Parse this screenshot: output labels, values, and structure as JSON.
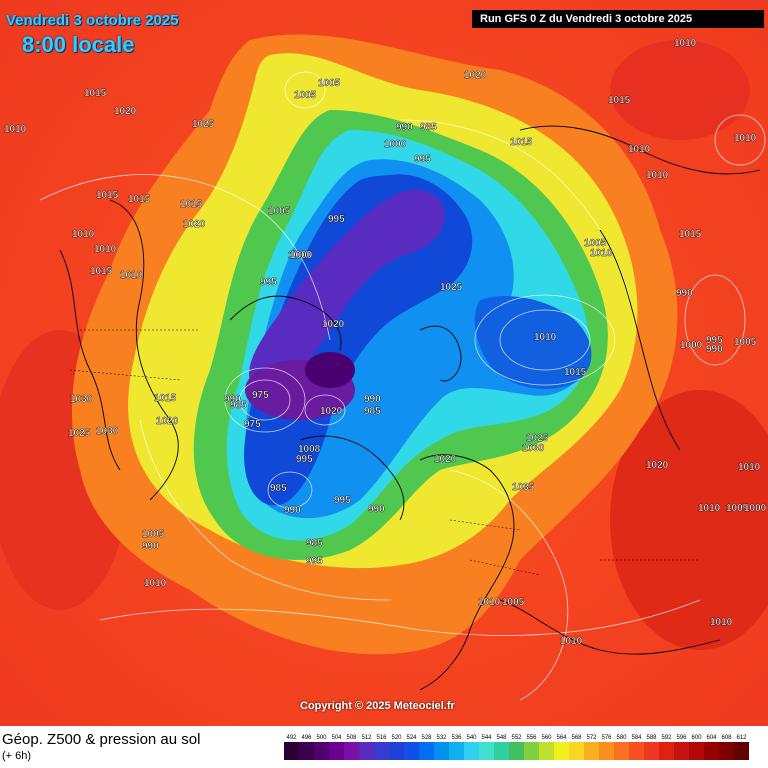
{
  "header": {
    "date_line": "Vendredi 3 octobre 2025",
    "time_line": "8:00 locale",
    "run_line": "Run GFS 0 Z du Vendredi 3 octobre 2025"
  },
  "footer": {
    "copyright": "Copyright © 2025 Meteociel.fr",
    "product": "Géop. Z500 & pression au sol",
    "lead_time": "(+ 6h)"
  },
  "legend": {
    "values": [
      "492",
      "496",
      "500",
      "504",
      "508",
      "512",
      "516",
      "520",
      "524",
      "528",
      "532",
      "536",
      "540",
      "544",
      "548",
      "552",
      "556",
      "560",
      "564",
      "568",
      "572",
      "576",
      "580",
      "584",
      "588",
      "592",
      "596",
      "600",
      "604",
      "608",
      "612"
    ],
    "colors": [
      "#2b0033",
      "#3d0050",
      "#520070",
      "#6a0090",
      "#7a10a8",
      "#5a2bc0",
      "#3a3ad0",
      "#2040d8",
      "#1050e8",
      "#0070f0",
      "#0090f0",
      "#10b0f0",
      "#30d0f0",
      "#40e0d0",
      "#30d0a0",
      "#40c060",
      "#80d040",
      "#c0e030",
      "#f0f020",
      "#f8d820",
      "#f8b020",
      "#f89020",
      "#f87020",
      "#f85020",
      "#f03820",
      "#e02010",
      "#c81010",
      "#b00808",
      "#980000",
      "#800000",
      "#600000"
    ]
  },
  "pressure_labels": [
    {
      "text": "1015"
    },
    {
      "text": "1020"
    },
    {
      "text": "1025"
    },
    {
      "text": "1010"
    },
    {
      "text": "1005"
    },
    {
      "text": "1020"
    },
    {
      "text": "990"
    },
    {
      "text": "985"
    },
    {
      "text": "1000"
    },
    {
      "text": "995"
    },
    {
      "text": "1015"
    },
    {
      "text": "1010"
    },
    {
      "text": "1015"
    },
    {
      "text": "1010"
    },
    {
      "text": "1005"
    },
    {
      "text": "1010"
    },
    {
      "text": "1015"
    },
    {
      "text": "1010"
    },
    {
      "text": "1015"
    },
    {
      "text": "1015"
    },
    {
      "text": "1020"
    },
    {
      "text": "1005"
    },
    {
      "text": "995"
    },
    {
      "text": "1010"
    },
    {
      "text": "1000"
    },
    {
      "text": "1010"
    },
    {
      "text": "1010"
    },
    {
      "text": "1015"
    },
    {
      "text": "995"
    },
    {
      "text": "1025"
    },
    {
      "text": "1005"
    },
    {
      "text": "1015"
    },
    {
      "text": "1000"
    },
    {
      "text": "1010"
    },
    {
      "text": "990"
    },
    {
      "text": "1000"
    },
    {
      "text": "995"
    },
    {
      "text": "990"
    },
    {
      "text": "1005"
    },
    {
      "text": "975"
    },
    {
      "text": "990"
    },
    {
      "text": "985"
    },
    {
      "text": "975"
    },
    {
      "text": "1020"
    },
    {
      "text": "990"
    },
    {
      "text": "985"
    },
    {
      "text": "1030"
    },
    {
      "text": "1025"
    },
    {
      "text": "1030"
    },
    {
      "text": "1020"
    },
    {
      "text": "1015"
    },
    {
      "text": "1008"
    },
    {
      "text": "995"
    },
    {
      "text": "1025"
    },
    {
      "text": "1030"
    },
    {
      "text": "1020"
    },
    {
      "text": "1020"
    },
    {
      "text": "1035"
    },
    {
      "text": "985"
    },
    {
      "text": "995"
    },
    {
      "text": "990"
    },
    {
      "text": "990"
    },
    {
      "text": "1010"
    },
    {
      "text": "1005"
    },
    {
      "text": "1005"
    },
    {
      "text": "990"
    },
    {
      "text": "985"
    },
    {
      "text": "1005"
    },
    {
      "text": "1000"
    },
    {
      "text": "995"
    },
    {
      "text": "1010"
    },
    {
      "text": "1010"
    },
    {
      "text": "1015"
    },
    {
      "text": "1010"
    },
    {
      "text": "1010"
    },
    {
      "text": "1020"
    },
    {
      "text": "1010"
    },
    {
      "text": "1010"
    }
  ]
}
